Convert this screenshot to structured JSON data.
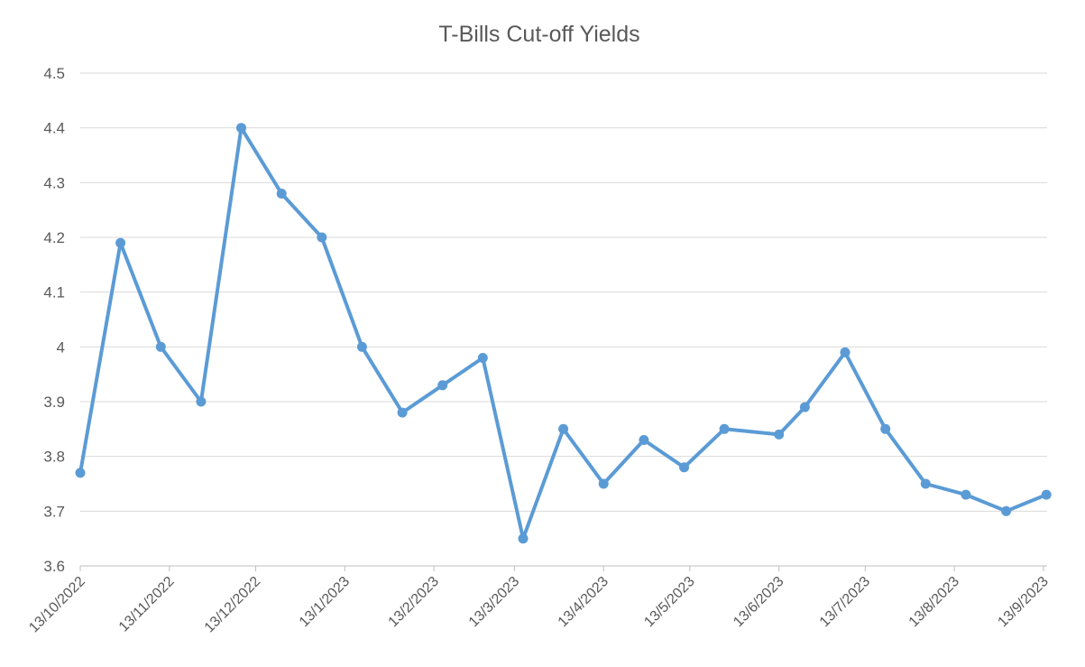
{
  "chart_data": {
    "type": "line",
    "title": "T-Bills Cut-off Yields",
    "xlabel": "",
    "ylabel": "",
    "ylim": [
      3.6,
      4.5
    ],
    "yticks": [
      3.6,
      3.7,
      3.8,
      3.9,
      4,
      4.1,
      4.2,
      4.3,
      4.4,
      4.5
    ],
    "xlim": [
      "2022-10-13",
      "2023-09-13"
    ],
    "xticks": [
      {
        "date": "2022-10-13",
        "label": "13/10/2022"
      },
      {
        "date": "2022-11-13",
        "label": "13/11/2022"
      },
      {
        "date": "2022-12-13",
        "label": "13/12/2022"
      },
      {
        "date": "2023-01-13",
        "label": "13/1/2023"
      },
      {
        "date": "2023-02-13",
        "label": "13/2/2023"
      },
      {
        "date": "2023-03-13",
        "label": "13/3/2023"
      },
      {
        "date": "2023-04-13",
        "label": "13/4/2023"
      },
      {
        "date": "2023-05-13",
        "label": "13/5/2023"
      },
      {
        "date": "2023-06-13",
        "label": "13/6/2023"
      },
      {
        "date": "2023-07-13",
        "label": "13/7/2023"
      },
      {
        "date": "2023-08-13",
        "label": "13/8/2023"
      },
      {
        "date": "2023-09-13",
        "label": "13/9/2023"
      }
    ],
    "grid": true,
    "legend": "none",
    "color": "#5b9bd5",
    "series": [
      {
        "points": [
          {
            "x": "2022-10-13",
            "y": 3.77
          },
          {
            "x": "2022-10-27",
            "y": 4.19
          },
          {
            "x": "2022-11-10",
            "y": 4.0
          },
          {
            "x": "2022-11-24",
            "y": 3.9
          },
          {
            "x": "2022-12-08",
            "y": 4.4
          },
          {
            "x": "2022-12-22",
            "y": 4.28
          },
          {
            "x": "2023-01-05",
            "y": 4.2
          },
          {
            "x": "2023-01-19",
            "y": 4.0
          },
          {
            "x": "2023-02-02",
            "y": 3.88
          },
          {
            "x": "2023-02-16",
            "y": 3.93
          },
          {
            "x": "2023-03-02",
            "y": 3.98
          },
          {
            "x": "2023-03-16",
            "y": 3.65
          },
          {
            "x": "2023-03-30",
            "y": 3.85
          },
          {
            "x": "2023-04-13",
            "y": 3.75
          },
          {
            "x": "2023-04-27",
            "y": 3.83
          },
          {
            "x": "2023-05-11",
            "y": 3.78
          },
          {
            "x": "2023-05-25",
            "y": 3.85
          },
          {
            "x": "2023-06-13",
            "y": 3.84
          },
          {
            "x": "2023-06-22",
            "y": 3.89
          },
          {
            "x": "2023-07-06",
            "y": 3.99
          },
          {
            "x": "2023-07-20",
            "y": 3.85
          },
          {
            "x": "2023-08-03",
            "y": 3.75
          },
          {
            "x": "2023-08-17",
            "y": 3.73
          },
          {
            "x": "2023-08-31",
            "y": 3.7
          },
          {
            "x": "2023-09-14",
            "y": 3.73
          }
        ]
      }
    ]
  }
}
